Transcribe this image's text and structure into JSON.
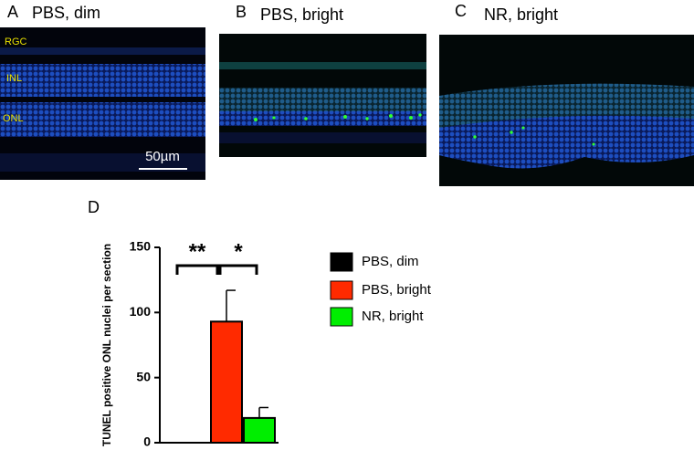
{
  "panels": [
    {
      "letter": "A",
      "title": "PBS, dim",
      "layer_labels": [
        "RGC",
        "INL",
        "ONL"
      ],
      "scale_bar": "50µm"
    },
    {
      "letter": "B",
      "title": "PBS, bright"
    },
    {
      "letter": "C",
      "title": "NR, bright"
    }
  ],
  "chart_data": {
    "type": "bar",
    "panel_letter": "D",
    "y_label": "TUNEL positive ONL nuclei per section",
    "categories": [
      "PBS, dim",
      "PBS, bright",
      "NR, bright"
    ],
    "values": [
      0,
      93,
      19
    ],
    "errors": [
      0,
      24,
      8
    ],
    "colors": [
      "#000000",
      "#ff2a00",
      "#00ee00"
    ],
    "ylim": [
      0,
      150
    ],
    "yticks": [
      0,
      50,
      100,
      150
    ],
    "annotations": [
      "**",
      "*"
    ],
    "legend": "right"
  }
}
